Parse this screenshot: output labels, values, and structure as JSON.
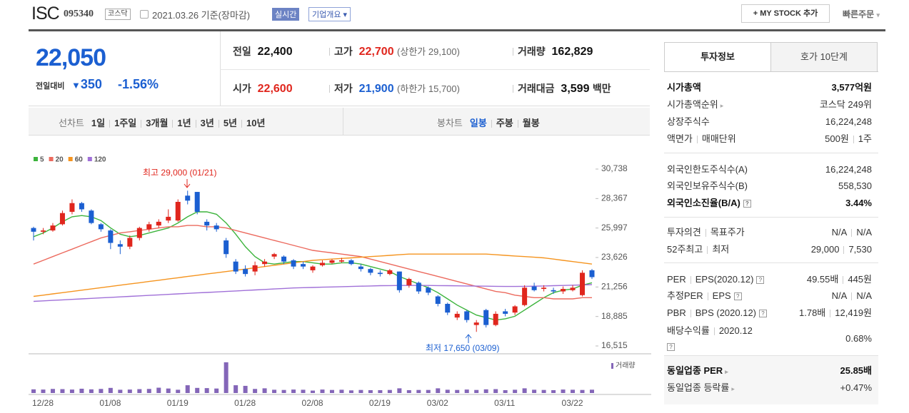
{
  "header": {
    "name": "ISC",
    "code": "095340",
    "market": "코스닥",
    "date": "2021.03.26 기준(장마감)",
    "realtime": "실시간",
    "company_info": "기업개요",
    "my_stock": "+ MY STOCK 추가",
    "quick_order": "빠른주문"
  },
  "quote": {
    "price": "22,050",
    "change_label": "전일대비",
    "change": "350",
    "change_rate": "-1.56%",
    "cells": [
      {
        "label": "전일",
        "value": "22,400"
      },
      {
        "label": "고가",
        "value": "22,700",
        "note": "(상한가 29,100)"
      },
      {
        "label": "거래량",
        "value": "162,829"
      },
      {
        "label": "시가",
        "value": "22,600"
      },
      {
        "label": "저가",
        "value": "21,900",
        "note": "(하한가 15,700)"
      },
      {
        "label": "거래대금",
        "value": "3,599",
        "unit": "백만"
      }
    ]
  },
  "chart_tabs": {
    "line_label": "선차트",
    "line_periods": [
      "1일",
      "1주일",
      "3개월",
      "1년",
      "3년",
      "5년",
      "10년"
    ],
    "candle_label": "봉차트",
    "candle_periods": [
      "일봉",
      "주봉",
      "월봉"
    ]
  },
  "chart_data": {
    "type": "candlestick",
    "categories": [
      "12/28",
      null,
      null,
      null,
      null,
      null,
      null,
      "01/08",
      null,
      null,
      null,
      null,
      null,
      null,
      "01/19",
      null,
      null,
      null,
      null,
      null,
      null,
      "01/28",
      null,
      null,
      null,
      null,
      null,
      null,
      "02/08",
      null,
      null,
      null,
      null,
      null,
      null,
      "02/19",
      null,
      null,
      null,
      null,
      null,
      "03/02",
      null,
      null,
      null,
      null,
      null,
      null,
      "03/11",
      null,
      null,
      null,
      null,
      null,
      null,
      "03/22",
      null,
      null,
      null
    ],
    "candles": {
      "up_color": "#e0261d",
      "down_color": "#1b5fd1",
      "open": [
        26000,
        25700,
        25800,
        26300,
        27300,
        28000,
        27400,
        26300,
        25800,
        24700,
        24500,
        25200,
        25900,
        26200,
        26600,
        26600,
        28600,
        28900,
        26500,
        26200,
        25000,
        23300,
        22700,
        22500,
        23100,
        23700,
        23700,
        23400,
        23100,
        22600,
        23000,
        23200,
        23300,
        23400,
        22900,
        22700,
        22400,
        22300,
        22500,
        21400,
        21600,
        21200,
        20500,
        19900,
        18800,
        19300,
        18200,
        19400,
        18200,
        19300,
        19200,
        19800,
        21300,
        21100,
        21000,
        20900,
        21000,
        20600,
        22600
      ],
      "high": [
        26100,
        26000,
        26400,
        27400,
        28300,
        28100,
        27500,
        26400,
        25900,
        25000,
        25400,
        26100,
        26500,
        26700,
        27500,
        28300,
        29000,
        28900,
        26700,
        26400,
        25200,
        23500,
        23000,
        23300,
        23500,
        24000,
        23800,
        23500,
        23300,
        23000,
        23400,
        23500,
        23600,
        23500,
        23100,
        22800,
        22600,
        22700,
        22500,
        22000,
        21700,
        21300,
        20600,
        20000,
        19300,
        19400,
        18600,
        19500,
        19300,
        19500,
        19800,
        21400,
        21600,
        21400,
        21200,
        21300,
        21400,
        22600,
        22700
      ],
      "low": [
        25000,
        25500,
        25700,
        26200,
        27100,
        27300,
        26300,
        25700,
        24300,
        23900,
        24300,
        25000,
        25700,
        26000,
        26400,
        26500,
        27900,
        27100,
        25800,
        25700,
        23600,
        22300,
        22100,
        22200,
        22900,
        23500,
        23100,
        22700,
        22700,
        22400,
        22900,
        23100,
        23200,
        23000,
        22500,
        22200,
        22100,
        22200,
        20800,
        21200,
        20700,
        20600,
        19700,
        19000,
        18600,
        18400,
        17650,
        18000,
        18100,
        18900,
        19000,
        19700,
        20900,
        20900,
        20700,
        20700,
        20900,
        20500,
        21900
      ],
      "close": [
        25700,
        25800,
        26200,
        27200,
        28000,
        27500,
        26400,
        25900,
        24800,
        24500,
        25200,
        26000,
        26300,
        26500,
        26900,
        28100,
        28200,
        27300,
        26200,
        25900,
        23900,
        22500,
        22300,
        23000,
        23300,
        23900,
        23300,
        22900,
        22900,
        22900,
        23200,
        23400,
        23400,
        23100,
        22700,
        22400,
        22300,
        22600,
        21000,
        21900,
        20900,
        20800,
        19900,
        19200,
        19100,
        18600,
        18400,
        18200,
        19100,
        19100,
        19700,
        21200,
        21000,
        21200,
        20900,
        21100,
        21200,
        22400,
        22050
      ]
    },
    "series": [
      {
        "name": "5",
        "color": "#3cb43c",
        "values": [
          25300,
          25600,
          26000,
          26500,
          26900,
          27000,
          26900,
          26600,
          26000,
          25500,
          25300,
          25400,
          25600,
          25800,
          26000,
          26400,
          26900,
          27300,
          27300,
          27100,
          26400,
          25500,
          24500,
          23700,
          23200,
          23100,
          23200,
          23300,
          23300,
          23200,
          23100,
          23100,
          23200,
          23200,
          23100,
          22900,
          22700,
          22500,
          22100,
          21800,
          21500,
          21200,
          20800,
          20300,
          19800,
          19400,
          19000,
          18800,
          18600,
          18700,
          18900,
          19400,
          19900,
          20400,
          20800,
          21000,
          21100,
          21400,
          21600
        ]
      },
      {
        "name": "20",
        "color": "#ec6a5e",
        "values": [
          23100,
          23400,
          23700,
          24000,
          24300,
          24600,
          24900,
          25200,
          25400,
          25600,
          25700,
          25800,
          25900,
          26000,
          26100,
          26100,
          26200,
          26200,
          26100,
          26100,
          26000,
          25800,
          25600,
          25400,
          25200,
          25000,
          24800,
          24600,
          24400,
          24200,
          24100,
          24000,
          23900,
          23800,
          23700,
          23500,
          23300,
          23100,
          22900,
          22700,
          22500,
          22300,
          22100,
          21900,
          21700,
          21500,
          21300,
          21100,
          20900,
          20800,
          20600,
          20500,
          20400,
          20400,
          20300,
          20300,
          20300,
          20400,
          20400
        ]
      },
      {
        "name": "60",
        "color": "#f5941f",
        "values": [
          20500,
          20600,
          20700,
          20800,
          20900,
          21000,
          21100,
          21200,
          21300,
          21400,
          21500,
          21600,
          21700,
          21800,
          21900,
          22000,
          22100,
          22200,
          22300,
          22400,
          22500,
          22600,
          22700,
          22800,
          22900,
          23000,
          23100,
          23200,
          23300,
          23400,
          23450,
          23500,
          23550,
          23600,
          23650,
          23700,
          23750,
          23800,
          23850,
          23900,
          23900,
          23900,
          23900,
          23900,
          23900,
          23900,
          23900,
          23900,
          23850,
          23800,
          23750,
          23700,
          23650,
          23600,
          23500,
          23400,
          23300,
          23200,
          23100
        ]
      },
      {
        "name": "120",
        "color": "#a070d8",
        "values": [
          20100,
          20140,
          20180,
          20220,
          20260,
          20300,
          20340,
          20380,
          20420,
          20460,
          20500,
          20540,
          20580,
          20620,
          20660,
          20700,
          20740,
          20780,
          20820,
          20860,
          20900,
          20940,
          20980,
          21020,
          21060,
          21100,
          21140,
          21180,
          21200,
          21220,
          21240,
          21260,
          21280,
          21300,
          21320,
          21340,
          21360,
          21370,
          21380,
          21380,
          21380,
          21380,
          21370,
          21360,
          21350,
          21340,
          21330,
          21320,
          21310,
          21300,
          21300,
          21310,
          21320,
          21340,
          21360,
          21380,
          21400,
          21420,
          21450
        ]
      }
    ],
    "ylim": [
      16000,
      32000
    ],
    "yticks": [
      {
        "value": 30738,
        "label": "30,738"
      },
      {
        "value": 28367,
        "label": "28,367"
      },
      {
        "value": 25997,
        "label": "25,997"
      },
      {
        "value": 23626,
        "label": "23,626"
      },
      {
        "value": 21256,
        "label": "21,256"
      },
      {
        "value": 18885,
        "label": "18,885"
      },
      {
        "value": 16515,
        "label": "16,515"
      }
    ],
    "annotations": [
      {
        "text": "최고 29,000 (01/21)",
        "color": "#e0261d"
      },
      {
        "text": "최저 17,650 (03/09)",
        "color": "#1b5fd1"
      }
    ],
    "volume": {
      "name": "거래량",
      "color": "#8466b8",
      "ylim": [
        0,
        1600000
      ],
      "values": [
        180000,
        170000,
        200000,
        190000,
        170000,
        210000,
        180000,
        200000,
        250000,
        160000,
        170000,
        190000,
        200000,
        260000,
        220000,
        160000,
        380000,
        250000,
        240000,
        220000,
        1500000,
        380000,
        350000,
        200000,
        230000,
        160000,
        150000,
        170000,
        160000,
        120000,
        170000,
        150000,
        160000,
        130000,
        150000,
        140000,
        140000,
        150000,
        230000,
        140000,
        150000,
        150000,
        230000,
        160000,
        150000,
        170000,
        150000,
        180000,
        190000,
        140000,
        160000,
        230000,
        160000,
        150000,
        140000,
        170000,
        160000,
        150000,
        162829
      ]
    }
  },
  "invest_info": {
    "tabs": [
      "투자정보",
      "호가 10단계"
    ],
    "groups": [
      {
        "rows": [
          {
            "label": [
              "시가총액"
            ],
            "value": [
              "3,577억원"
            ]
          },
          {
            "label": [
              "시가총액순위"
            ],
            "value": [
              "코스닥 249위"
            ]
          },
          {
            "label": [
              "상장주식수"
            ],
            "value": [
              "16,224,248"
            ]
          },
          {
            "label": [
              "액면가",
              "매매단위"
            ],
            "value": [
              "500원",
              "1주"
            ]
          }
        ]
      },
      {
        "rows": [
          {
            "label": [
              "외국인한도주식수(A)"
            ],
            "value": [
              "16,224,248"
            ]
          },
          {
            "label": [
              "외국인보유주식수(B)"
            ],
            "value": [
              "558,530"
            ]
          },
          {
            "label": [
              "외국인소진율(B/A)"
            ],
            "value": [
              "3.44%"
            ]
          }
        ]
      },
      {
        "rows": [
          {
            "label": [
              "투자의견",
              "목표주가"
            ],
            "value": [
              "N/A",
              "N/A"
            ]
          },
          {
            "label": [
              "52주최고",
              "최저"
            ],
            "value": [
              "29,000",
              "7,530"
            ]
          }
        ]
      },
      {
        "rows": [
          {
            "label": [
              "PER",
              "EPS(2020.12)"
            ],
            "value": [
              "49.55배",
              "445원"
            ]
          },
          {
            "label": [
              "추정PER",
              "EPS"
            ],
            "value": [
              "N/A",
              "N/A"
            ]
          },
          {
            "label": [
              "PBR",
              "BPS (2020.12)"
            ],
            "value": [
              "1.78배",
              "12,419원"
            ]
          },
          {
            "label": [
              "배당수익률",
              "2020.12"
            ],
            "value": [
              "0.68%"
            ]
          }
        ]
      },
      {
        "rows": [
          {
            "label": [
              "동일업종 PER"
            ],
            "value": [
              "25.85배"
            ]
          },
          {
            "label": [
              "동일업종 등락률"
            ],
            "value": [
              "+0.47%"
            ]
          }
        ]
      }
    ]
  }
}
